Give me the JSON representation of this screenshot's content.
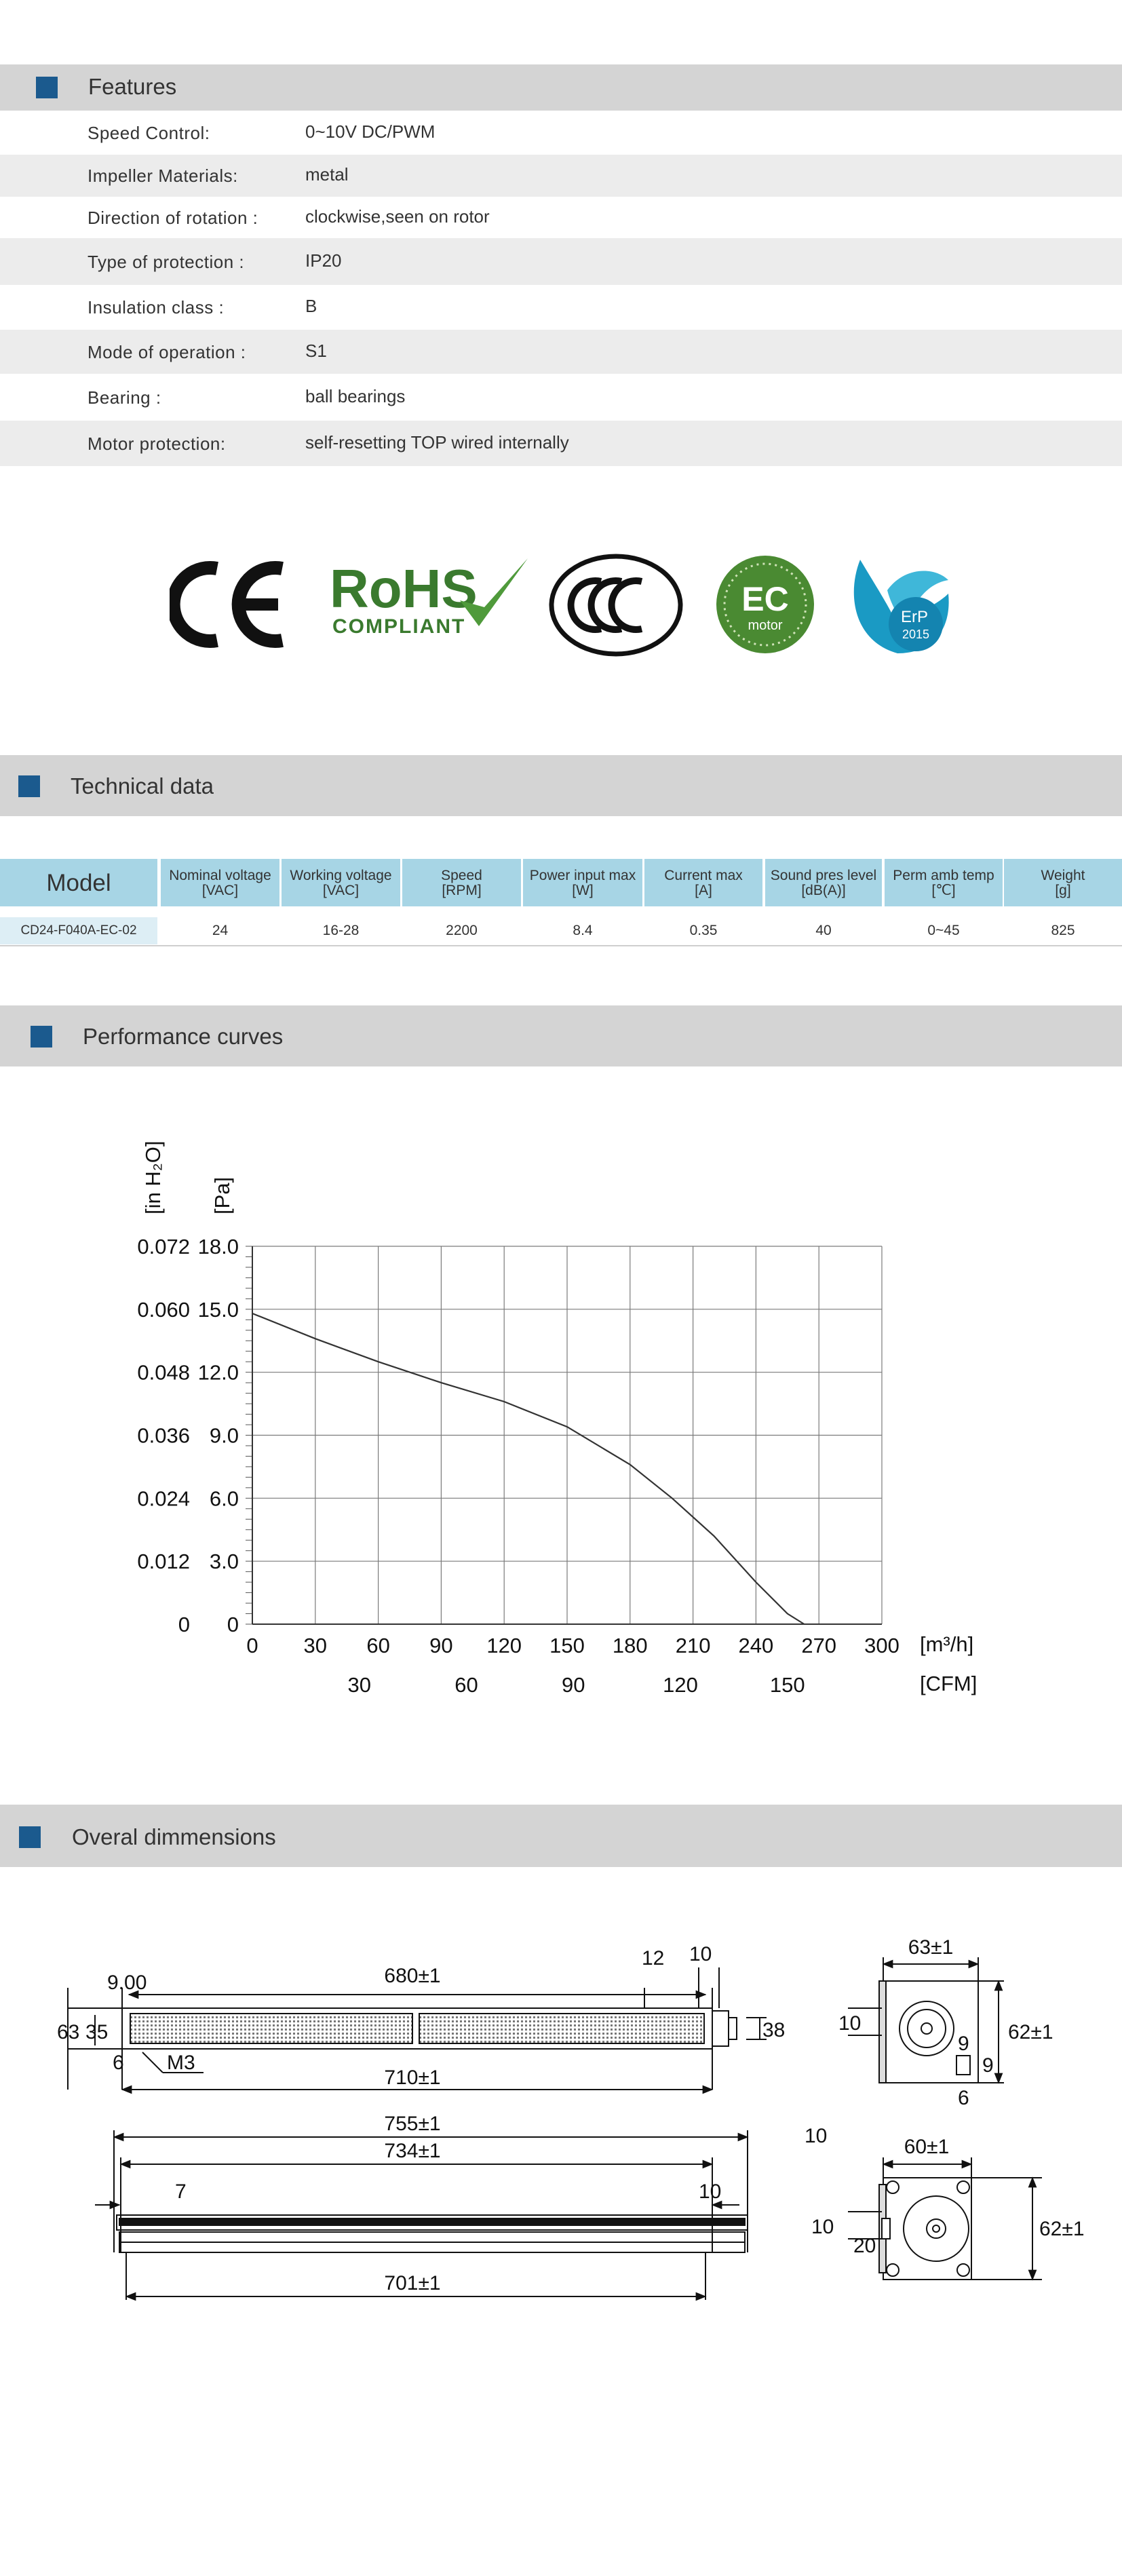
{
  "sections": {
    "features": "Features",
    "technical": "Technical data",
    "performance": "Performance curves",
    "dimensions": "Overal dimmensions"
  },
  "features": [
    {
      "label": "Speed Control:",
      "value": "0~10V DC/PWM"
    },
    {
      "label": "Impeller Materials:",
      "value": "metal"
    },
    {
      "label": "Direction  of  rotation  :",
      "value": "clockwise,seen on rotor"
    },
    {
      "label": "Type of protection :",
      "value": "IP20"
    },
    {
      "label": "Insulation  class :",
      "value": "B"
    },
    {
      "label": "Mode of operation :",
      "value": "S1"
    },
    {
      "label": "Bearing :",
      "value": "ball  bearings"
    },
    {
      "label": "Motor protection:",
      "value": "self-resetting TOP wired internally"
    }
  ],
  "logos": {
    "ce": "CE",
    "rohs": "RoHS",
    "rohs_sub": "COMPLIANT",
    "ccc": "CCC",
    "ec": "EC",
    "ec_sub": "motor",
    "erp": "ErP",
    "erp_year": "2015"
  },
  "colors": {
    "accent": "#1b5a8e",
    "band": "#d4d4d4",
    "table_header": "#a7d5e5",
    "model_cell": "#ddeef5"
  },
  "table": {
    "model_header": "Model",
    "columns": [
      {
        "name": "Nominal voltage",
        "unit": "[VAC]"
      },
      {
        "name": "Working voltage",
        "unit": "[VAC]"
      },
      {
        "name": "Speed",
        "unit": "[RPM]"
      },
      {
        "name": "Power input max",
        "unit": "[W]"
      },
      {
        "name": "Current max",
        "unit": "[A]"
      },
      {
        "name": "Sound pres level",
        "unit": "[dB(A)]"
      },
      {
        "name": "Perm amb temp",
        "unit": "[℃]"
      },
      {
        "name": "Weight",
        "unit": "[g]"
      }
    ],
    "rows": [
      {
        "model": "CD24-F040A-EC-02",
        "values": [
          "24",
          "16-28",
          "2200",
          "8.4",
          "0.35",
          "40",
          "0~45",
          "825"
        ]
      }
    ]
  },
  "chart_data": {
    "type": "line",
    "title": "",
    "xlabel": "[m³/h]",
    "xlabel_secondary": "[CFM]",
    "ylabel": "[Pa]",
    "ylabel_secondary": "[in H₂O]",
    "xlim": [
      0,
      300
    ],
    "ylim": [
      0,
      18
    ],
    "grid": true,
    "x_ticks": [
      "0",
      "30",
      "60",
      "90",
      "120",
      "150",
      "180",
      "210",
      "240",
      "270",
      "300"
    ],
    "x2_ticks": [
      {
        "label": "30",
        "x": 51
      },
      {
        "label": "60",
        "x": 102
      },
      {
        "label": "90",
        "x": 153
      },
      {
        "label": "120",
        "x": 204
      },
      {
        "label": "150",
        "x": 255
      }
    ],
    "y_ticks": [
      "0",
      "3.0",
      "6.0",
      "9.0",
      "12.0",
      "15.0",
      "18.0"
    ],
    "y2_ticks": [
      "0",
      "0.012",
      "0.024",
      "0.036",
      "0.048",
      "0.060",
      "0.072"
    ],
    "series": [
      {
        "x": [
          0,
          30,
          60,
          90,
          120,
          150,
          180,
          200,
          220,
          240,
          255,
          263
        ],
        "y": [
          14.8,
          13.6,
          12.5,
          11.5,
          10.6,
          9.4,
          7.6,
          6.0,
          4.2,
          2.0,
          0.5,
          0.0
        ]
      }
    ]
  },
  "dimensions": {
    "front": {
      "length_top": "680±1",
      "length_bottom": "710±1",
      "height_total": "63",
      "height_inner": "35",
      "offset_left": "9.00",
      "offset_small": "6",
      "thread": "M3",
      "right_a": "12",
      "right_b": "10",
      "right_end": "38"
    },
    "side_top": {
      "width": "63±1",
      "height": "62±1",
      "left": "10",
      "hole_a": "9",
      "hole_b": "9",
      "bottom": "6"
    },
    "bottom_view": {
      "total": "755±1",
      "inner": "734±1",
      "bottom": "701±1",
      "left": "7",
      "right": "10"
    },
    "side_bottom": {
      "width": "60±1",
      "height": "62±1",
      "top_left": "10",
      "left": "10",
      "small": "20"
    }
  }
}
